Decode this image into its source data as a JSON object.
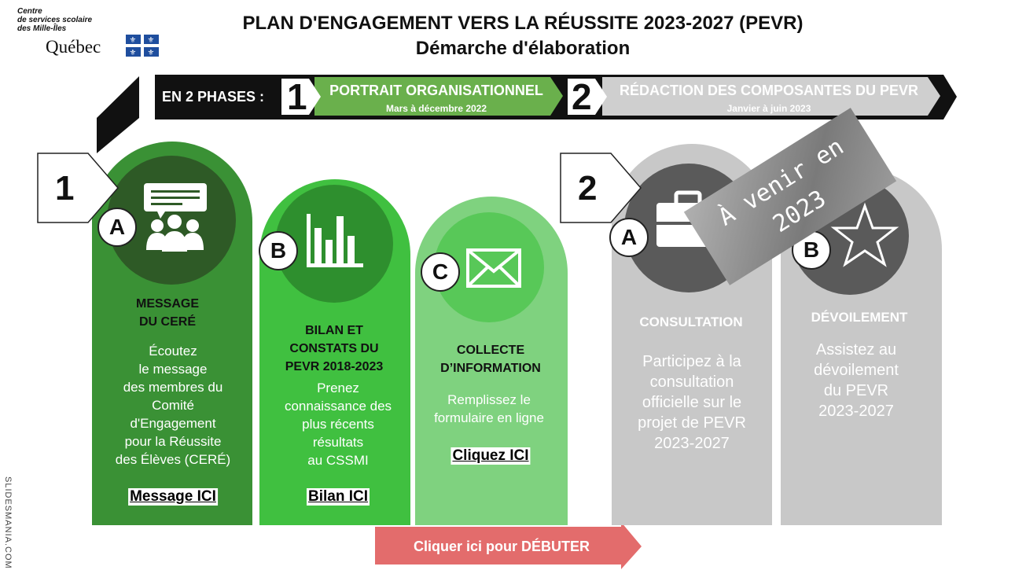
{
  "logo": {
    "lines": [
      "Centre",
      "de services scolaire",
      "des Mille-Îles"
    ],
    "name": "Québec"
  },
  "header": {
    "title": "PLAN D'ENGAGEMENT VERS LA RÉUSSITE 2023-2027 (PEVR)",
    "subtitle": "Démarche d'élaboration"
  },
  "phases": {
    "label": "EN 2 PHASES :",
    "items": [
      {
        "number": "1",
        "title": "PORTRAIT ORGANISATIONNEL",
        "dates": "Mars à décembre 2022"
      },
      {
        "number": "2",
        "title": "RÉDACTION DES COMPOSANTES DU PEVR",
        "dates": "Janvier à juin 2023"
      }
    ]
  },
  "groups": [
    {
      "number": "1",
      "cards": [
        {
          "letter": "A",
          "title": "MESSAGE\nDU CERÉ",
          "text": "Écoutez\nle message\ndes membres du\nComité\nd'Engagement\npour la Réussite\ndes Élèves (CERÉ)",
          "link": "Message ICI"
        },
        {
          "letter": "B",
          "title": "BILAN ET\nCONSTATS DU\nPEVR 2018-2023",
          "text": "Prenez\nconnaissance des\nplus récents\nrésultats\nau CSSMI",
          "link": "Bilan ICI"
        },
        {
          "letter": "C",
          "title": "COLLECTE\nD’INFORMATION",
          "text": "Remplissez le\nformulaire en ligne",
          "link": "Cliquez ICI"
        }
      ]
    },
    {
      "number": "2",
      "cards": [
        {
          "letter": "A",
          "title": "CONSULTATION",
          "text": "Participez à la\nconsultation\nofficielle sur le\nprojet de PEVR\n2023-2027"
        },
        {
          "letter": "B",
          "title": "DÉVOILEMENT",
          "text": "Assistez au\ndévoilement\ndu PEVR\n2023-2027"
        }
      ]
    }
  ],
  "stamp": "À venir en\n2023",
  "button": "Cliquer ici pour DÉBUTER",
  "watermark": "SLIDESMANIA.COM"
}
